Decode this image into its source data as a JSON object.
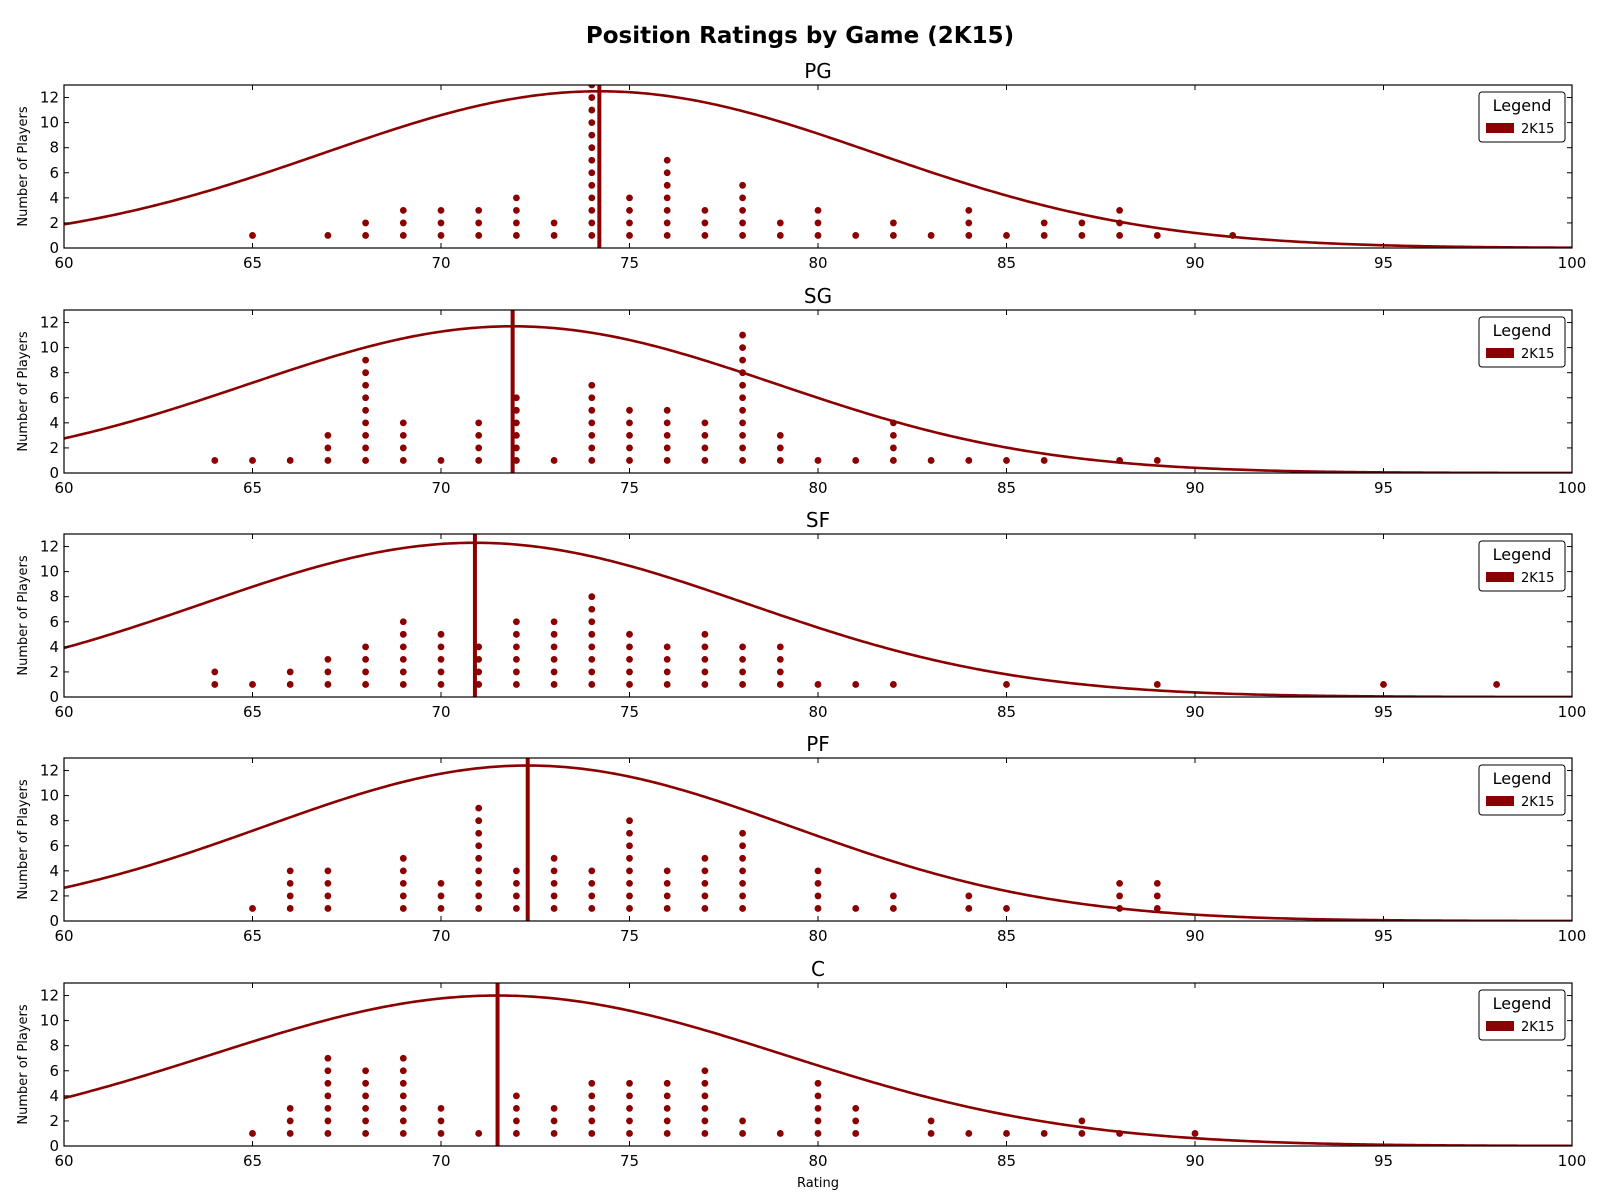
{
  "title": "Position Ratings by Game (2K15)",
  "colors": {
    "series": "#8b0000",
    "axis": "#000000",
    "background": "#ffffff"
  },
  "chart_data": {
    "type": "scatter",
    "layout": "5 stacked subplots sharing x-axis range",
    "xlabel": "Rating",
    "ylabel": "Number of Players",
    "xlim": [
      60,
      100
    ],
    "ylim": [
      0,
      13
    ],
    "xticks": [
      60,
      65,
      70,
      75,
      80,
      85,
      90,
      95,
      100
    ],
    "yticks": [
      0,
      2,
      4,
      6,
      8,
      10,
      12
    ],
    "legend": {
      "title": "Legend",
      "placement": "top-right",
      "entries": [
        "2K15"
      ]
    },
    "panels": [
      {
        "title": "PG",
        "mean_line": 74.2,
        "curve": {
          "type": "normal",
          "peak": 12.5,
          "center": 74.2,
          "sigma": 7.3
        },
        "counts": [
          [
            65,
            1
          ],
          [
            67,
            1
          ],
          [
            68,
            2
          ],
          [
            69,
            3
          ],
          [
            70,
            3
          ],
          [
            71,
            3
          ],
          [
            72,
            4
          ],
          [
            73,
            2
          ],
          [
            74,
            13
          ],
          [
            75,
            4
          ],
          [
            76,
            7
          ],
          [
            77,
            3
          ],
          [
            78,
            5
          ],
          [
            79,
            2
          ],
          [
            80,
            3
          ],
          [
            81,
            1
          ],
          [
            82,
            2
          ],
          [
            83,
            1
          ],
          [
            84,
            3
          ],
          [
            85,
            1
          ],
          [
            86,
            2
          ],
          [
            87,
            2
          ],
          [
            88,
            3
          ],
          [
            89,
            1
          ],
          [
            91,
            1
          ]
        ]
      },
      {
        "title": "SG",
        "mean_line": 71.9,
        "curve": {
          "type": "normal",
          "peak": 11.7,
          "center": 71.9,
          "sigma": 7.0
        },
        "counts": [
          [
            64,
            1
          ],
          [
            65,
            1
          ],
          [
            66,
            1
          ],
          [
            67,
            3
          ],
          [
            68,
            9
          ],
          [
            69,
            4
          ],
          [
            70,
            1
          ],
          [
            71,
            4
          ],
          [
            72,
            6
          ],
          [
            73,
            1
          ],
          [
            74,
            7
          ],
          [
            75,
            5
          ],
          [
            76,
            5
          ],
          [
            77,
            4
          ],
          [
            78,
            11
          ],
          [
            79,
            3
          ],
          [
            80,
            1
          ],
          [
            81,
            1
          ],
          [
            82,
            4
          ],
          [
            83,
            1
          ],
          [
            84,
            1
          ],
          [
            85,
            1
          ],
          [
            86,
            1
          ],
          [
            88,
            1
          ],
          [
            89,
            1
          ]
        ]
      },
      {
        "title": "SF",
        "mean_line": 70.9,
        "curve": {
          "type": "normal",
          "peak": 12.3,
          "center": 70.9,
          "sigma": 7.2
        },
        "counts": [
          [
            64,
            2
          ],
          [
            65,
            1
          ],
          [
            66,
            2
          ],
          [
            67,
            3
          ],
          [
            68,
            4
          ],
          [
            69,
            6
          ],
          [
            70,
            5
          ],
          [
            71,
            4
          ],
          [
            72,
            6
          ],
          [
            73,
            6
          ],
          [
            74,
            8
          ],
          [
            75,
            5
          ],
          [
            76,
            4
          ],
          [
            77,
            5
          ],
          [
            78,
            4
          ],
          [
            79,
            4
          ],
          [
            80,
            1
          ],
          [
            81,
            1
          ],
          [
            82,
            1
          ],
          [
            85,
            1
          ],
          [
            89,
            1
          ],
          [
            95,
            1
          ],
          [
            98,
            1
          ]
        ]
      },
      {
        "title": "PF",
        "mean_line": 72.3,
        "curve": {
          "type": "normal",
          "peak": 12.4,
          "center": 72.3,
          "sigma": 7.0
        },
        "counts": [
          [
            65,
            1
          ],
          [
            66,
            4
          ],
          [
            67,
            4
          ],
          [
            69,
            5
          ],
          [
            70,
            3
          ],
          [
            71,
            9
          ],
          [
            72,
            4
          ],
          [
            73,
            5
          ],
          [
            74,
            4
          ],
          [
            75,
            8
          ],
          [
            76,
            4
          ],
          [
            77,
            5
          ],
          [
            78,
            7
          ],
          [
            80,
            4
          ],
          [
            81,
            1
          ],
          [
            82,
            2
          ],
          [
            84,
            2
          ],
          [
            85,
            1
          ],
          [
            88,
            3
          ],
          [
            89,
            3
          ]
        ]
      },
      {
        "title": "C",
        "mean_line": 71.5,
        "curve": {
          "type": "normal",
          "peak": 12.0,
          "center": 71.5,
          "sigma": 7.6
        },
        "counts": [
          [
            65,
            1
          ],
          [
            66,
            3
          ],
          [
            67,
            7
          ],
          [
            68,
            6
          ],
          [
            69,
            7
          ],
          [
            70,
            3
          ],
          [
            71,
            1
          ],
          [
            72,
            4
          ],
          [
            73,
            3
          ],
          [
            74,
            5
          ],
          [
            75,
            5
          ],
          [
            76,
            5
          ],
          [
            77,
            6
          ],
          [
            78,
            2
          ],
          [
            79,
            1
          ],
          [
            80,
            5
          ],
          [
            81,
            3
          ],
          [
            83,
            2
          ],
          [
            84,
            1
          ],
          [
            85,
            1
          ],
          [
            86,
            1
          ],
          [
            87,
            2
          ],
          [
            88,
            1
          ],
          [
            90,
            1
          ]
        ]
      }
    ]
  }
}
